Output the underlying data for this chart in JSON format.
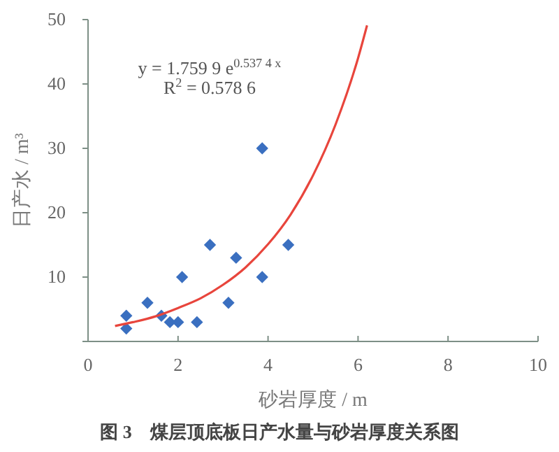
{
  "chart_data": {
    "type": "scatter",
    "title": "图 3　煤层顶底板日产水量与砂岩厚度关系图",
    "xlabel": "砂岩厚度 / m",
    "ylabel": "日产水 / m³",
    "annotations": [
      "y = 1.759 9 e$^{0.537 4 x}$",
      "R$^{2}$ = 0.578 6"
    ],
    "xlim": [
      0,
      10
    ],
    "xticks": [
      0,
      2,
      4,
      6,
      8,
      10
    ],
    "ylim": [
      0,
      50
    ],
    "yticks": [
      {
        "value": 0,
        "label": null
      },
      10,
      20,
      30,
      40,
      50
    ],
    "grid": false,
    "series": [
      {
        "marker": "diamond",
        "color": "#3a6fc0",
        "x": [
          0.85,
          0.85,
          1.32,
          1.63,
          1.82,
          2.0,
          2.09,
          2.42,
          2.71,
          3.12,
          3.29,
          3.87,
          4.45,
          3.87
        ],
        "values": [
          4,
          2,
          6,
          4,
          3,
          3,
          10,
          3,
          15,
          6,
          13,
          10,
          15,
          30
        ]
      },
      {
        "type": "line",
        "marker": "none",
        "line_style": "solid",
        "color": "#e8453c",
        "x": [
          0.6,
          1,
          1.5,
          2,
          2.5,
          3,
          3.5,
          4,
          4.5,
          5,
          5.5,
          6,
          6.2
        ],
        "values": [
          2.4,
          3.0,
          3.9,
          5.2,
          6.7,
          8.8,
          11.5,
          15.1,
          19.7,
          25.8,
          33.7,
          44.0,
          49.1
        ]
      }
    ]
  }
}
